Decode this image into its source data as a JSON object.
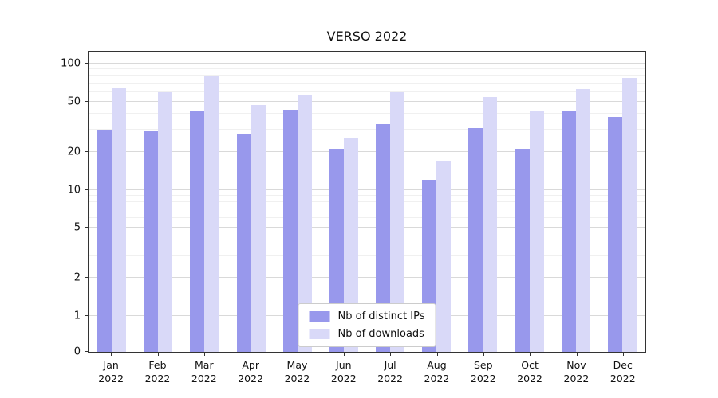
{
  "chart_data": {
    "type": "bar",
    "title": "VERSO 2022",
    "categories": [
      "Jan",
      "Feb",
      "Mar",
      "Apr",
      "May",
      "Jun",
      "Jul",
      "Aug",
      "Sep",
      "Oct",
      "Nov",
      "Dec"
    ],
    "year_label": "2022",
    "series": [
      {
        "name": "Nb of distinct IPs",
        "color": "#9898ec",
        "values": [
          30,
          29,
          42,
          28,
          43,
          21,
          33,
          12,
          31,
          21,
          42,
          38
        ]
      },
      {
        "name": "Nb of downloads",
        "color": "#d9d9f8",
        "values": [
          65,
          60,
          80,
          47,
          57,
          26,
          60,
          17,
          54,
          42,
          63,
          77
        ]
      }
    ],
    "y_axis": {
      "scale": "symlog",
      "major_ticks": [
        0,
        1,
        2,
        5,
        10,
        20,
        50,
        100
      ],
      "minor_ticks": [
        3,
        4,
        6,
        7,
        8,
        9,
        30,
        40,
        60,
        70,
        80,
        90
      ],
      "max": 110
    },
    "xlabel": "",
    "ylabel": "",
    "grid": true,
    "legend_position": "lower center"
  },
  "colors": {
    "grid_major": "#d9d9d9",
    "grid_minor": "#f0f0f0",
    "axis": "#333333",
    "background": "#ffffff",
    "text": "#111111"
  }
}
